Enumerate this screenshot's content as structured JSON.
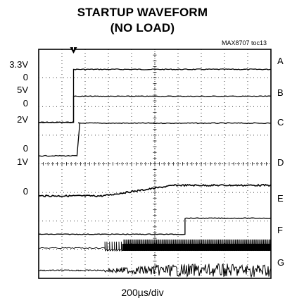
{
  "chart_data": {
    "type": "line",
    "title": "STARTUP WAVEFORM",
    "subtitle": "(NO LOAD)",
    "note": "MAX8707 toc13",
    "xlabel": "200µs/div",
    "x_divisions": 10,
    "y_divisions": 8,
    "grid": true,
    "trigger_marker": "T",
    "left_labels": [
      "3.3V",
      "0",
      "5V",
      "0",
      "2V",
      "0",
      "1V",
      "0"
    ],
    "series": [
      {
        "name": "A",
        "y": 0.7,
        "zero": 2.55,
        "step_at": 1.5
      },
      {
        "name": "B",
        "y": 1.64,
        "zero": 2.55,
        "step_at": 1.5
      },
      {
        "name": "C",
        "y": 2.58,
        "zero": 3.72,
        "step_at": 1.65
      },
      {
        "name": "D",
        "y": 4.75,
        "zero": 5.12,
        "ramp_start": 2.75,
        "ramp_end": 5.85
      },
      {
        "name": "E",
        "y": 5.9,
        "zero": 6.46,
        "step_at": 6.3
      },
      {
        "name": "F",
        "y": 6.94,
        "burst_start": 2.85,
        "burst_dense": 3.6
      },
      {
        "name": "G",
        "y": 7.72,
        "noise_start": 2.8
      }
    ]
  }
}
